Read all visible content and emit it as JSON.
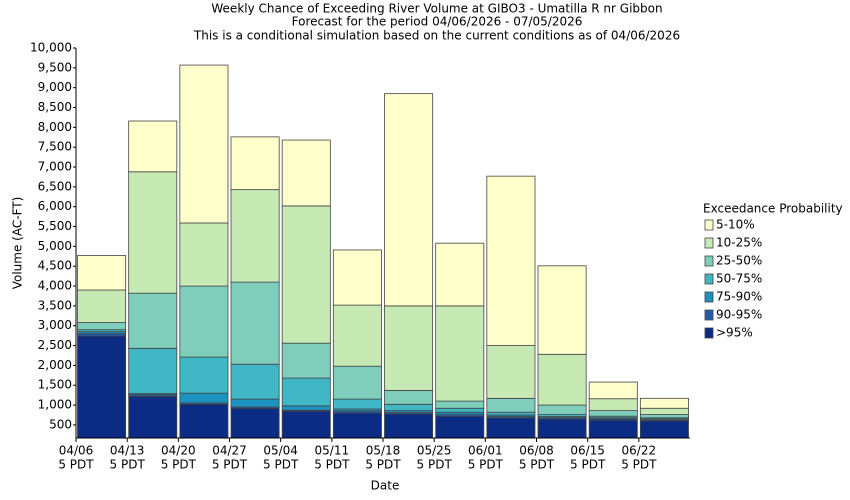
{
  "chart_data": {
    "type": "stacked_bar",
    "title": "Weekly Chance of Exceeding River Volume at GIBO3 - Umatilla R nr Gibbon",
    "subtitle": "Forecast for the period 04/06/2026 - 07/05/2026",
    "note": "This is a conditional simulation based on the current conditions as of 04/06/2026",
    "x_label": "Date",
    "y_label": "Volume (AC-FT)",
    "legend_title": "Exceedance Probability",
    "categories": [
      "04/06",
      "04/13",
      "04/20",
      "04/27",
      "05/04",
      "05/11",
      "05/18",
      "05/25",
      "06/01",
      "06/08",
      "06/15",
      "06/22"
    ],
    "category_sublabels": [
      "5 PDT",
      "5 PDT",
      "5 PDT",
      "5 PDT",
      "5 PDT",
      "5 PDT",
      "5 PDT",
      "5 PDT",
      "5 PDT",
      "5 PDT",
      "5 PDT",
      "5 PDT"
    ],
    "series": [
      {
        "name": ">95%",
        "color": "#0c2c84",
        "values": [
          2740,
          1220,
          1020,
          920,
          850,
          800,
          780,
          720,
          680,
          650,
          620,
          600
        ]
      },
      {
        "name": "90-95%",
        "color": "#225ea8",
        "values": [
          60,
          40,
          30,
          30,
          20,
          50,
          30,
          40,
          30,
          30,
          30,
          20
        ]
      },
      {
        "name": "75-90%",
        "color": "#1d91c0",
        "values": [
          50,
          30,
          250,
          200,
          110,
          50,
          50,
          60,
          40,
          30,
          30,
          30
        ]
      },
      {
        "name": "50-75%",
        "color": "#41b6c4",
        "values": [
          50,
          1140,
          910,
          880,
          700,
          250,
          160,
          100,
          70,
          50,
          40,
          30
        ]
      },
      {
        "name": "25-50%",
        "color": "#7fcdbb",
        "values": [
          180,
          1390,
          1790,
          2070,
          880,
          830,
          350,
          180,
          350,
          240,
          140,
          80
        ]
      },
      {
        "name": "10-25%",
        "color": "#c7e9b4",
        "values": [
          820,
          3060,
          1590,
          2330,
          3460,
          1540,
          2130,
          2400,
          1330,
          1280,
          300,
          160
        ]
      },
      {
        "name": "5-10%",
        "color": "#ffffcc",
        "values": [
          870,
          1280,
          3980,
          1330,
          1660,
          1390,
          5350,
          1580,
          4270,
          2230,
          420,
          250
        ]
      }
    ],
    "ylim": [
      170,
      10000
    ],
    "yticks": [
      500,
      {
        "value": 1000,
        "label": "1,000"
      },
      {
        "value": 1500,
        "label": "1,500"
      },
      {
        "value": 2000,
        "label": "2,000"
      },
      {
        "value": 2500,
        "label": "2,500"
      },
      {
        "value": 3000,
        "label": "3,000"
      },
      {
        "value": 3500,
        "label": "3,500"
      },
      {
        "value": 4000,
        "label": "4,000"
      },
      {
        "value": 4500,
        "label": "4,500"
      },
      {
        "value": 5000,
        "label": "5,000"
      },
      {
        "value": 5500,
        "label": "5,500"
      },
      {
        "value": 6000,
        "label": "6,000"
      },
      {
        "value": 6500,
        "label": "6,500"
      },
      {
        "value": 7000,
        "label": "7,000"
      },
      {
        "value": 7500,
        "label": "7,500"
      },
      {
        "value": 8000,
        "label": "8,000"
      },
      {
        "value": 8500,
        "label": "8,500"
      },
      {
        "value": 9000,
        "label": "9,000"
      },
      {
        "value": 9500,
        "label": "9,500"
      },
      {
        "value": 10000,
        "label": "10,000"
      }
    ],
    "grid": false,
    "legend": "right"
  }
}
